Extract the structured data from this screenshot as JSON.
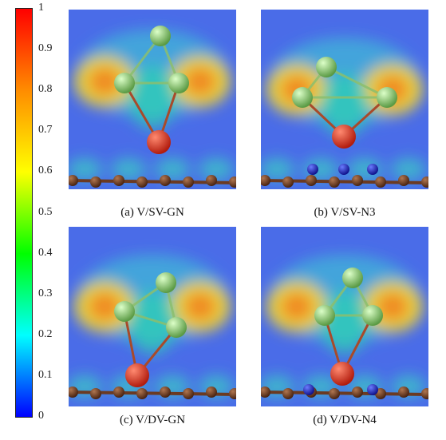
{
  "colorbar": {
    "ticks": [
      "1",
      "0.9",
      "0.8",
      "0.7",
      "0.6",
      "0.5",
      "0.4",
      "0.3",
      "0.2",
      "0.1",
      "0"
    ],
    "colors": [
      "#ff0000",
      "#ff8c00",
      "#ffff00",
      "#00ff00",
      "#00ffff",
      "#0000ff"
    ]
  },
  "panels": [
    {
      "caption": "(a) V/SV-GN",
      "substrate_dopant": "none",
      "defect": "single-vacancy"
    },
    {
      "caption": "(b) V/SV-N3",
      "substrate_dopant": "N3",
      "defect": "single-vacancy"
    },
    {
      "caption": "(c) V/DV-GN",
      "substrate_dopant": "none",
      "defect": "double-vacancy"
    },
    {
      "caption": "(d) V/DV-N4",
      "substrate_dopant": "N4",
      "defect": "double-vacancy"
    }
  ],
  "atom_colors": {
    "metal": "#d32f1f",
    "cluster": "#8fd27a",
    "carbon": "#6b3a22",
    "nitrogen": "#2233dd"
  }
}
